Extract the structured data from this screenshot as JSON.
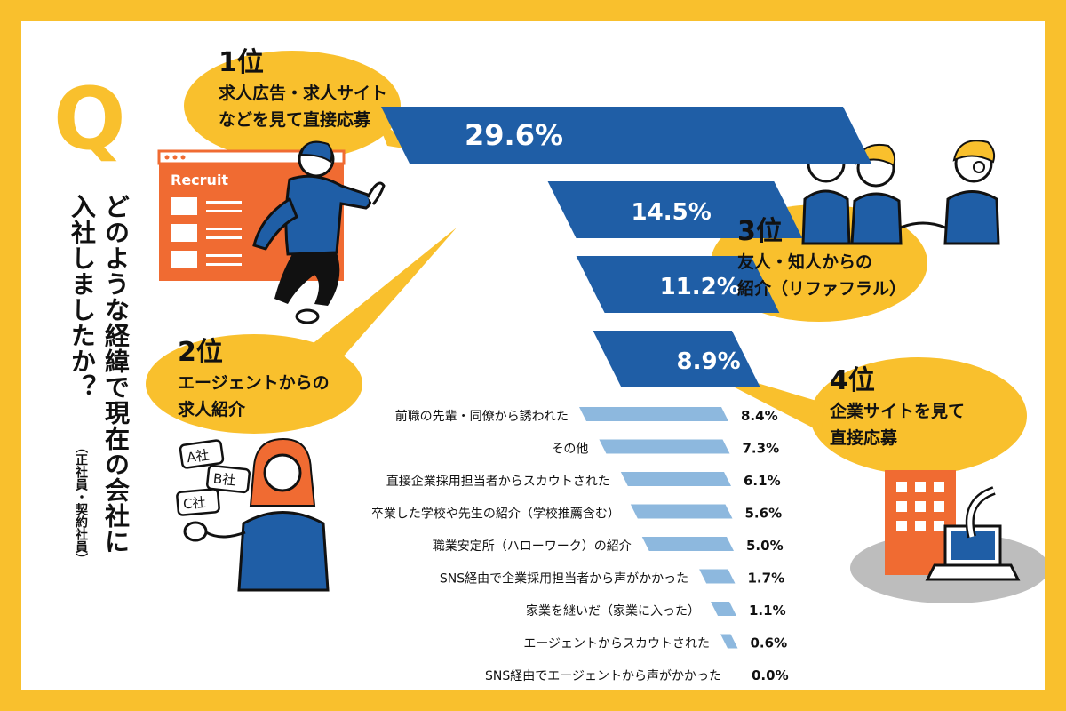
{
  "question": {
    "letter": "Q",
    "col1": "どのような経緯で現在の会社に",
    "col2": "入社しましたか？",
    "note": "（正社員・契約社員）"
  },
  "rank_labels": {
    "first": {
      "rank": "1位",
      "line1": "求人広告・求人サイト",
      "line2": "などを見て直接応募"
    },
    "second": {
      "rank": "2位",
      "line1": "エージェントからの",
      "line2": "求人紹介"
    },
    "third": {
      "rank": "3位",
      "line1": "友人・知人からの",
      "line2": "紹介（リファフラル）"
    },
    "fourth": {
      "rank": "4位",
      "line1": "企業サイトを見て",
      "line2": "直接応募"
    }
  },
  "illustration_text": {
    "recruit": "Recruit",
    "company_a": "A社",
    "company_b": "B社",
    "company_c": "C社"
  },
  "colors": {
    "frame": "#F9C02D",
    "bubble": "#F9C02D",
    "bar_top": "#1F5EA6",
    "bar_small": "#8DB8DE",
    "accent_orange": "#F06B32"
  },
  "chart_data": {
    "type": "bar",
    "orientation": "horizontal",
    "categories": [
      "求人広告・求人サイトなどを見て直接応募",
      "エージェントからの求人紹介",
      "友人・知人からの紹介（リファフラル）",
      "企業サイトを見て直接応募",
      "前職の先輩・同僚から誘われた",
      "その他",
      "直接企業採用担当者からスカウトされた",
      "卒業した学校や先生の紹介（学校推薦含む）",
      "職業安定所（ハローワーク）の紹介",
      "SNS経由で企業採用担当者から声がかかった",
      "家業を継いだ（家業に入った）",
      "エージェントからスカウトされた",
      "SNS経由でエージェントから声がかかった"
    ],
    "values": [
      29.6,
      14.5,
      11.2,
      8.9,
      8.4,
      7.3,
      6.1,
      5.6,
      5.0,
      1.7,
      1.1,
      0.6,
      0.0
    ],
    "value_labels": [
      "29.6%",
      "14.5%",
      "11.2%",
      "8.9%",
      "8.4%",
      "7.3%",
      "6.1%",
      "5.6%",
      "5.0%",
      "1.7%",
      "1.1%",
      "0.6%",
      "0.0%"
    ],
    "unit": "%",
    "grid": false,
    "legend": "none"
  }
}
